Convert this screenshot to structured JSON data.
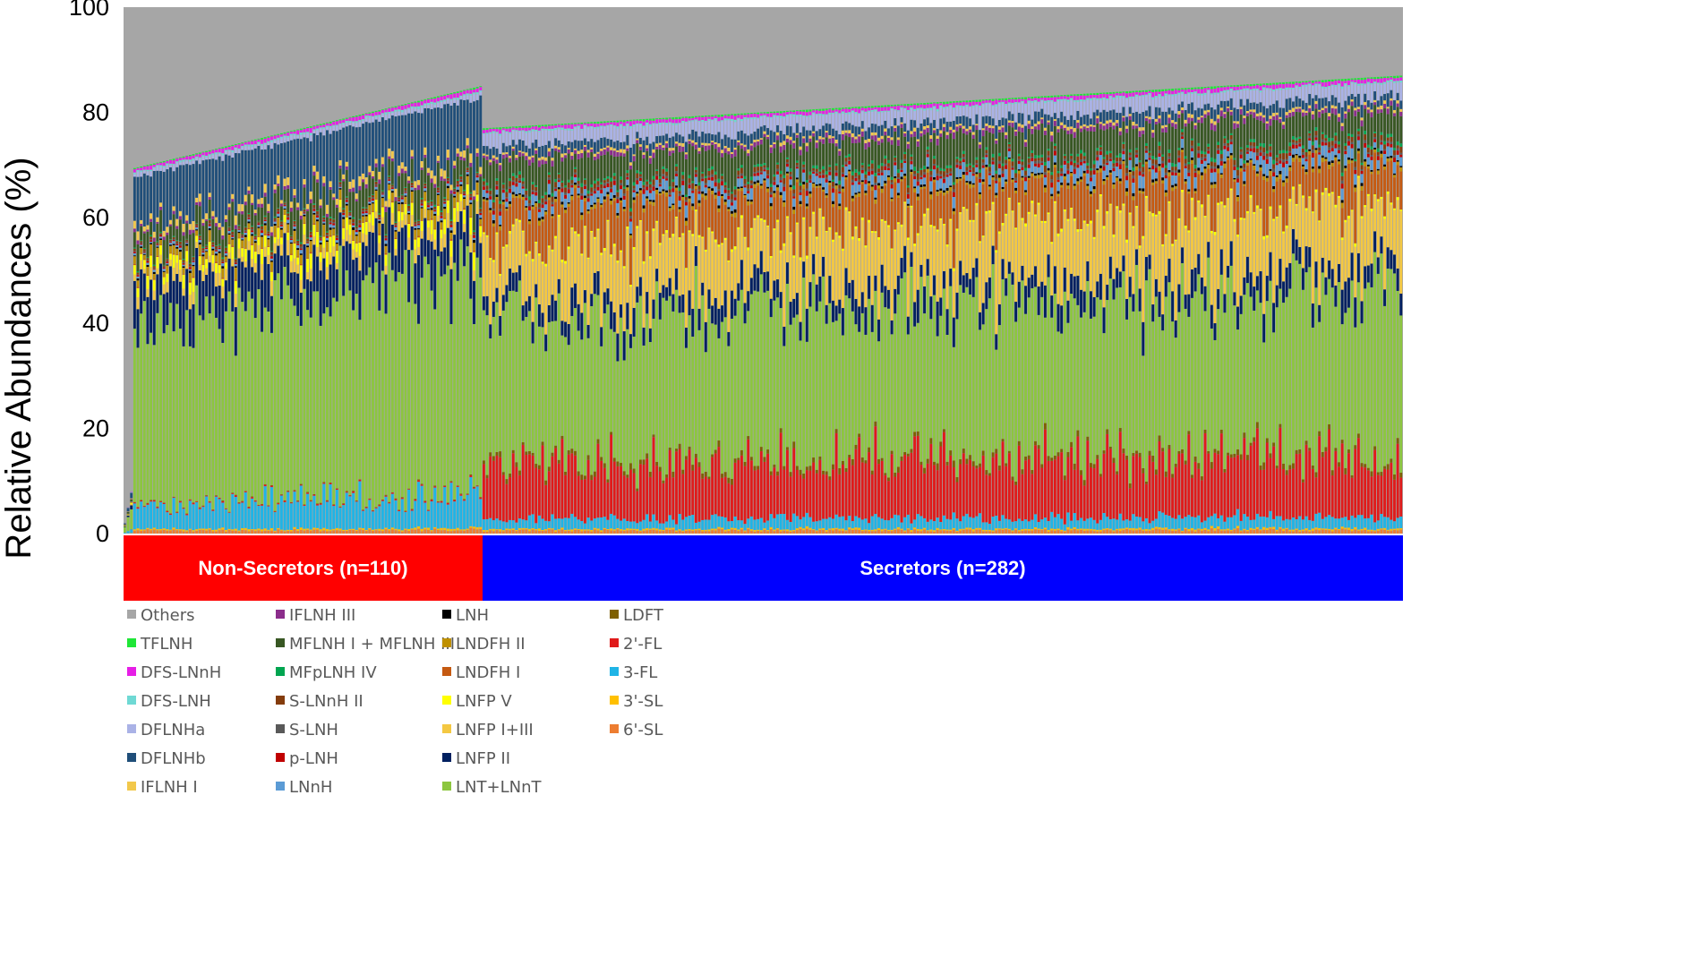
{
  "chart_data": {
    "type": "bar",
    "stacked": true,
    "title": "",
    "xlabel": "",
    "ylabel": "Relative Abundances (%)",
    "ylim": [
      0,
      100
    ],
    "yticks": [
      0,
      20,
      40,
      60,
      80,
      100
    ],
    "grid": false,
    "legend_position": "bottom",
    "groups": [
      {
        "label": "Non-Secretors (n=110)",
        "n": 110,
        "color": "#ff0000"
      },
      {
        "label": "Secretors (n=282)",
        "n": 282,
        "color": "#0000ff"
      }
    ],
    "series": [
      {
        "name": "Others",
        "color": "#a6a6a6"
      },
      {
        "name": "TFLNH",
        "color": "#1fe637"
      },
      {
        "name": "DFS-LNnH",
        "color": "#e61ee6"
      },
      {
        "name": "DFS-LNH",
        "color": "#6fd9d4"
      },
      {
        "name": "DFLNHa",
        "color": "#aab2e6"
      },
      {
        "name": "DFLNHb",
        "color": "#1f4e79"
      },
      {
        "name": "IFLNH I",
        "color": "#f2c84b"
      },
      {
        "name": "IFLNH III",
        "color": "#8b2d8b"
      },
      {
        "name": "MFLNH I + MFLNH III",
        "color": "#385723"
      },
      {
        "name": "MFpLNH IV",
        "color": "#00a550"
      },
      {
        "name": "S-LNnH II",
        "color": "#843c0c"
      },
      {
        "name": "S-LNH",
        "color": "#595959"
      },
      {
        "name": "p-LNH",
        "color": "#c00000"
      },
      {
        "name": "LNnH",
        "color": "#5b9bd5"
      },
      {
        "name": "LNH",
        "color": "#000000"
      },
      {
        "name": "LNDFH II",
        "color": "#bf9000"
      },
      {
        "name": "LNDFH I",
        "color": "#c55a11"
      },
      {
        "name": "LNFP V",
        "color": "#ffff00"
      },
      {
        "name": "LNFP I+III",
        "color": "#f4c842"
      },
      {
        "name": "LNFP II",
        "color": "#002060"
      },
      {
        "name": "LNT+LNnT",
        "color": "#8cc63f"
      },
      {
        "name": "LDFT",
        "color": "#7f6000"
      },
      {
        "name": "2'-FL",
        "color": "#e01a1a"
      },
      {
        "name": "3-FL",
        "color": "#1fb4e6"
      },
      {
        "name": "3'-SL",
        "color": "#ffc000"
      },
      {
        "name": "6'-SL",
        "color": "#ed7d31"
      }
    ],
    "group_profiles": {
      "Non-Secretors (n=110)": {
        "6'-SL": 0.6,
        "3'-SL": 0.3,
        "3-FL": 5.5,
        "2'-FL": 0.2,
        "LDFT": 0.1,
        "LNT+LNnT": 37.5,
        "LNFP II": 7.5,
        "LNFP I+III": 1.8,
        "LNFP V": 2.0,
        "LNDFH I": 0.2,
        "LNDFH II": 1.5,
        "LNH": 0.3,
        "LNnH": 0.4,
        "p-LNH": 0.3,
        "S-LNH": 0.2,
        "S-LNnH II": 0.4,
        "MFpLNH IV": 0.2,
        "MFLNH I + MFLNH III": 4.0,
        "IFLNH III": 0.6,
        "IFLNH I": 1.2,
        "DFLNHb": 9.5,
        "DFLNHa": 0.8,
        "DFS-LNH": 0.3,
        "DFS-LNnH": 0.6,
        "TFLNH": 0.2,
        "Others": 23.3
      },
      "Secretors (n=282)": {
        "6'-SL": 0.6,
        "3'-SL": 0.3,
        "3-FL": 2.0,
        "2'-FL": 11.0,
        "LDFT": 0.8,
        "LNT+LNnT": 29.0,
        "LNFP II": 4.0,
        "LNFP I+III": 11.0,
        "LNFP V": 0.4,
        "LNDFH I": 7.0,
        "LNDFH II": 0.6,
        "LNH": 0.4,
        "LNnH": 1.6,
        "p-LNH": 0.6,
        "S-LNH": 0.4,
        "S-LNnH II": 0.8,
        "MFpLNH IV": 0.5,
        "MFLNH I + MFLNH III": 5.0,
        "IFLNH III": 0.8,
        "IFLNH I": 0.5,
        "DFLNHb": 1.8,
        "DFLNHa": 2.5,
        "DFS-LNH": 0.3,
        "DFS-LNnH": 0.6,
        "TFLNH": 0.3,
        "Others": 17.0
      }
    },
    "cumulative_top_range": {
      "Non-Secretors (n=110)": [
        69,
        85
      ],
      "Secretors (n=282)": [
        77,
        87
      ]
    }
  }
}
